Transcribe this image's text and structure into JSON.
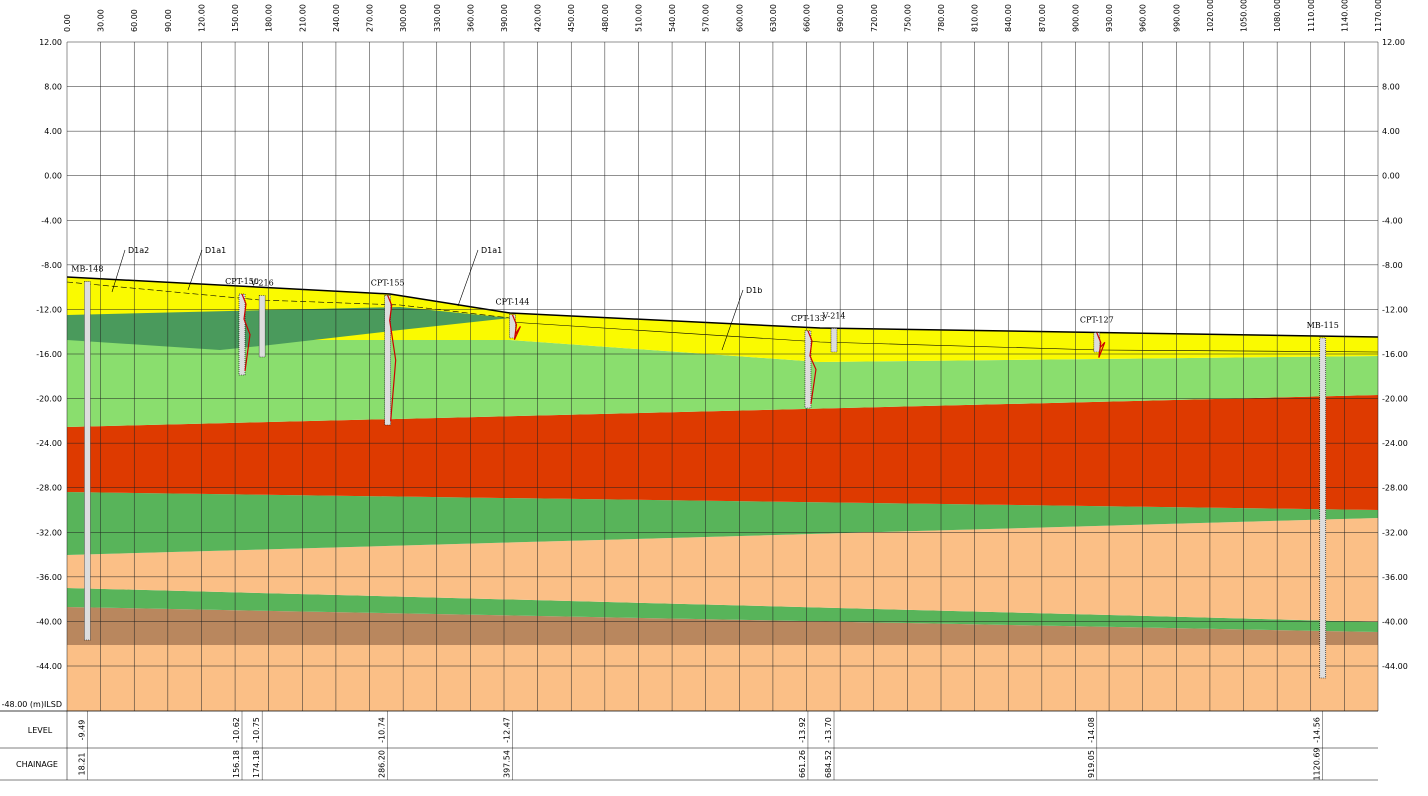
{
  "section": {
    "x_ticks": [
      "0.00",
      "30.00",
      "60.00",
      "90.00",
      "120.00",
      "150.00",
      "180.00",
      "210.00",
      "240.00",
      "270.00",
      "300.00",
      "330.00",
      "360.00",
      "390.00",
      "420.00",
      "450.00",
      "480.00",
      "510.00",
      "540.00",
      "570.00",
      "600.00",
      "630.00",
      "660.00",
      "690.00",
      "720.00",
      "750.00",
      "780.00",
      "810.00",
      "840.00",
      "870.00",
      "900.00",
      "930.00",
      "960.00",
      "990.00",
      "1020.00",
      "1050.00",
      "1080.00",
      "1110.00",
      "1140.00",
      "1170.00"
    ],
    "y_ticks": [
      "12.00",
      "8.00",
      "4.00",
      "0.00",
      "-4.00",
      "-8.00",
      "-12.00",
      "-16.00",
      "-20.00",
      "-24.00",
      "-28.00",
      "-32.00",
      "-36.00",
      "-40.00",
      "-44.00"
    ],
    "datum_label": "-48.00 (m)ILSD",
    "layer_labels": [
      "D1a2",
      "D1a1",
      "D1a1",
      "D1b"
    ],
    "table": {
      "row_labels": [
        "LEVEL",
        "CHAINAGE"
      ],
      "boreholes": [
        {
          "name": "MB-148",
          "level": "-9.49",
          "chainage": "18.21"
        },
        {
          "name": "CPT-150",
          "level": "-10.62",
          "chainage": "156.18"
        },
        {
          "name": "V-216",
          "level": "-10.75",
          "chainage": "174.18"
        },
        {
          "name": "CPT-155",
          "level": "-10.74",
          "chainage": "286.20"
        },
        {
          "name": "CPT-144",
          "level": "-12.47",
          "chainage": "397.54"
        },
        {
          "name": "CPT-133",
          "level": "-13.92",
          "chainage": "661.26"
        },
        {
          "name": "V-214",
          "level": "-13.70",
          "chainage": "684.52"
        },
        {
          "name": "CPT-127",
          "level": "-14.08",
          "chainage": "919.05"
        },
        {
          "name": "MB-115",
          "level": "-14.56",
          "chainage": "1120.69"
        }
      ]
    }
  }
}
